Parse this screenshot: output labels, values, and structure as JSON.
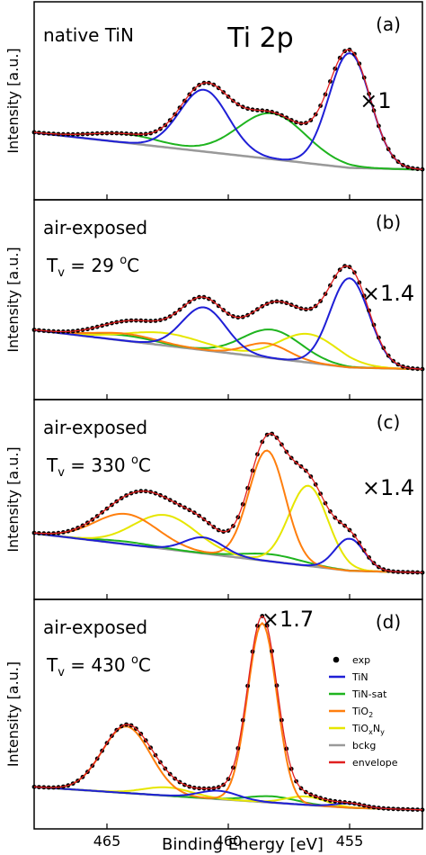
{
  "chart_data": {
    "type": "line",
    "xlabel": "Binding Energy [eV]",
    "ylabel": "Intensity [a.u.]",
    "xlim": [
      468,
      452
    ],
    "x_reversed": true,
    "x_ticks": [
      465,
      460,
      455
    ],
    "series_colors": {
      "exp": "#000000",
      "TiN": "#1f1fd6",
      "TiN-sat": "#1fb41f",
      "TiO2": "#ff7f0e",
      "TiOxNy": "#e6e600",
      "bckg": "#999999",
      "envelope": "#e02020"
    },
    "legend": {
      "placement": "bottom-right of panel (d)",
      "entries": [
        {
          "key": "exp",
          "label": "exp",
          "marker": "dot"
        },
        {
          "key": "TiN",
          "label": "TiN",
          "marker": "line"
        },
        {
          "key": "TiN-sat",
          "label": "TiN-sat",
          "marker": "line"
        },
        {
          "key": "TiO2",
          "label": "TiO",
          "sub": "2",
          "marker": "line"
        },
        {
          "key": "TiOxNy",
          "label": "TiO",
          "sub": "x",
          "mid": "N",
          "sub2": "y",
          "marker": "line"
        },
        {
          "key": "bckg",
          "label": "bckg",
          "marker": "line"
        },
        {
          "key": "envelope",
          "label": "envelope",
          "marker": "line"
        }
      ]
    },
    "panels": [
      {
        "id": "a",
        "letter": "(a)",
        "label_line1": "native TiN",
        "title": "Ti 2p",
        "scale": "×1",
        "ylim": [
          0,
          10
        ],
        "background": [
          [
            468,
            3.2
          ],
          [
            455,
            1.2
          ],
          [
            452,
            1.1
          ]
        ],
        "components": {
          "TiN": [
            {
              "center": 455.0,
              "height": 6.5,
              "width": 0.85
            },
            {
              "center": 461.0,
              "height": 3.5,
              "width": 1.0
            }
          ],
          "TiN-sat": [
            {
              "center": 458.2,
              "height": 2.6,
              "width": 1.4
            },
            {
              "center": 464.2,
              "height": 0.5,
              "width": 1.4
            }
          ]
        }
      },
      {
        "id": "b",
        "letter": "(b)",
        "label_line1": "air-exposed",
        "label_line2_prefix": "T",
        "label_line2_sub": "v",
        "label_line2_rest": " = 29 ",
        "label_line2_sup": "o",
        "label_line2_unit": "C",
        "scale": "×1.4",
        "ylim": [
          0,
          10
        ],
        "background": [
          [
            468,
            3.3
          ],
          [
            455,
            1.2
          ],
          [
            452,
            1.1
          ]
        ],
        "components": {
          "TiN": [
            {
              "center": 455.0,
              "height": 5.0,
              "width": 0.8
            },
            {
              "center": 461.0,
              "height": 2.4,
              "width": 0.9
            }
          ],
          "TiN-sat": [
            {
              "center": 458.2,
              "height": 1.6,
              "width": 1.2
            },
            {
              "center": 464.2,
              "height": 0.3,
              "width": 1.2
            }
          ],
          "TiO2": [
            {
              "center": 458.4,
              "height": 0.8,
              "width": 0.9
            },
            {
              "center": 464.2,
              "height": 0.4,
              "width": 1.3
            }
          ],
          "TiOxNy": [
            {
              "center": 456.7,
              "height": 1.6,
              "width": 1.2
            },
            {
              "center": 462.6,
              "height": 0.7,
              "width": 1.6
            }
          ]
        }
      },
      {
        "id": "c",
        "letter": "(c)",
        "label_line1": "air-exposed",
        "label_line2_prefix": "T",
        "label_line2_sub": "v",
        "label_line2_rest": " = 330 ",
        "label_line2_sup": "o",
        "label_line2_unit": "C",
        "scale": "×1.4",
        "ylim": [
          0,
          10
        ],
        "background": [
          [
            468,
            3.1
          ],
          [
            455,
            1.0
          ],
          [
            452,
            0.9
          ]
        ],
        "components": {
          "TiN": [
            {
              "center": 455.0,
              "height": 1.8,
              "width": 0.6
            },
            {
              "center": 461.0,
              "height": 0.9,
              "width": 0.8
            }
          ],
          "TiN-sat": [
            {
              "center": 458.2,
              "height": 0.4,
              "width": 1.2
            },
            {
              "center": 464.2,
              "height": 0.15,
              "width": 1.2
            }
          ],
          "TiO2": [
            {
              "center": 458.4,
              "height": 6.2,
              "width": 0.75
            },
            {
              "center": 464.2,
              "height": 1.7,
              "width": 1.3
            }
          ],
          "TiOxNy": [
            {
              "center": 456.7,
              "height": 4.5,
              "width": 0.8
            },
            {
              "center": 462.6,
              "height": 1.9,
              "width": 1.3
            }
          ]
        }
      },
      {
        "id": "d",
        "letter": "(d)",
        "label_line1": "air-exposed",
        "label_line2_prefix": "T",
        "label_line2_sub": "v",
        "label_line2_rest": " = 430 ",
        "label_line2_sup": "o",
        "label_line2_unit": "C",
        "scale": "×1.7",
        "ylim": [
          0,
          10
        ],
        "background": [
          [
            468,
            1.5
          ],
          [
            455,
            0.5
          ],
          [
            452,
            0.4
          ]
        ],
        "components": {
          "TiN": [
            {
              "center": 455.0,
              "height": 0.2,
              "width": 0.6
            },
            {
              "center": 460.4,
              "height": 0.4,
              "width": 0.8
            }
          ],
          "TiN-sat": [
            {
              "center": 458.2,
              "height": 0.3,
              "width": 1.0
            }
          ],
          "TiO2": [
            {
              "center": 458.6,
              "height": 8.6,
              "width": 0.6
            },
            {
              "center": 464.2,
              "height": 3.2,
              "width": 1.0
            }
          ],
          "TiOxNy": [
            {
              "center": 456.8,
              "height": 0.4,
              "width": 0.8
            },
            {
              "center": 462.5,
              "height": 0.4,
              "width": 1.0
            }
          ]
        }
      }
    ]
  }
}
